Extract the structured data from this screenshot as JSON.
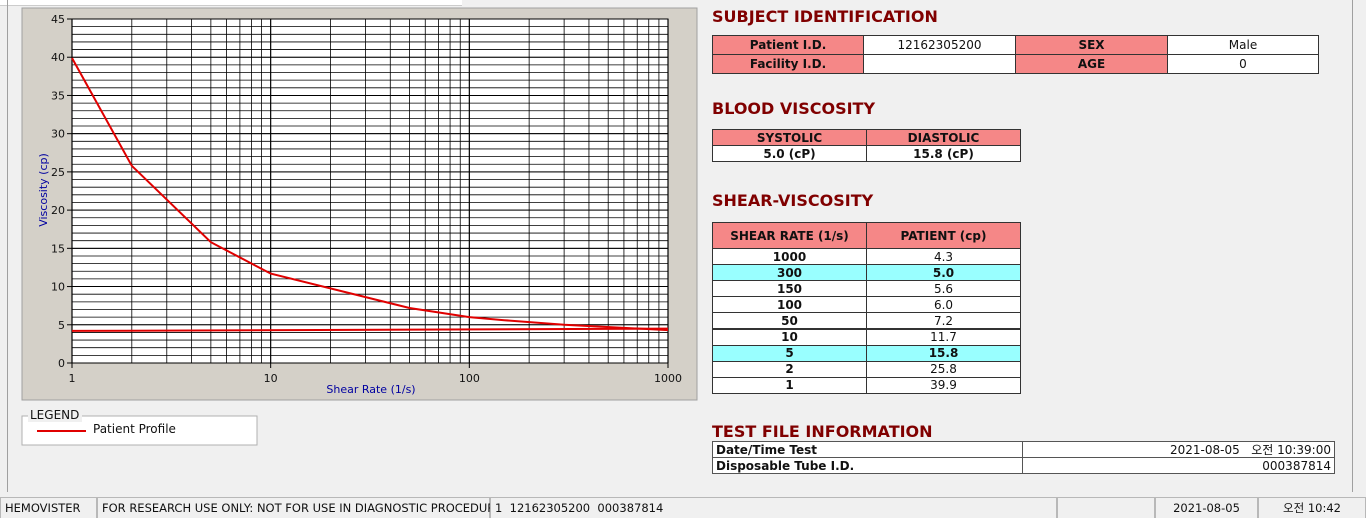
{
  "chart_data": {
    "type": "line",
    "xlabel": "Shear Rate (1/s)",
    "ylabel": "Viscosity (cp)",
    "x": [
      1,
      2,
      5,
      10,
      50,
      100,
      150,
      300,
      1000
    ],
    "series": [
      {
        "name": "Patient Profile",
        "color": "#e00000",
        "values": [
          39.9,
          25.8,
          15.8,
          11.7,
          7.2,
          6.0,
          5.6,
          5.0,
          4.3
        ]
      },
      {
        "color": "#e00000",
        "x": [
          1,
          12,
          1000
        ],
        "values": [
          4.2,
          4.3,
          4.5
        ]
      }
    ],
    "xscale": "log",
    "xlim": [
      1,
      1000
    ],
    "xticks": [
      1,
      10,
      100,
      1000
    ],
    "ylim": [
      0,
      45
    ],
    "yticks": [
      0,
      5,
      10,
      15,
      20,
      25,
      30,
      35,
      40,
      45
    ],
    "grid": true,
    "legend": {
      "title": "LEGEND"
    }
  },
  "subject": {
    "title": "SUBJECT IDENTIFICATION",
    "rows": [
      [
        "Patient I.D.",
        "12162305200",
        "SEX",
        "Male"
      ],
      [
        "Facility I.D.",
        null,
        "AGE",
        "0"
      ]
    ]
  },
  "blood": {
    "title": "BLOOD VISCOSITY",
    "headers": [
      "SYSTOLIC",
      "DIASTOLIC"
    ],
    "values": [
      "5.0 (cP)",
      "15.8 (cP)"
    ]
  },
  "shear": {
    "title": "SHEAR-VISCOSITY",
    "headers": [
      "SHEAR RATE (1/s)",
      "PATIENT (cp)"
    ],
    "rows": [
      [
        "1000",
        "4.3"
      ],
      [
        "300",
        "5.0"
      ],
      [
        "150",
        "5.6"
      ],
      [
        "100",
        "6.0"
      ],
      [
        "50",
        "7.2"
      ],
      [
        "10",
        "11.7"
      ],
      [
        "5",
        "15.8"
      ],
      [
        "2",
        "25.8"
      ],
      [
        "1",
        "39.9"
      ]
    ],
    "highlight_rows": [
      1,
      6
    ],
    "highlight_color": "#99ffff"
  },
  "test_file": {
    "title": "TEST FILE INFORMATION",
    "rows": [
      [
        "Date/Time Test",
        "2021-08-05   오전 10:39:00"
      ],
      [
        "Disposable Tube I.D.",
        "000387814"
      ]
    ]
  },
  "status_bar": [
    "HEMOVISTER",
    "FOR RESEARCH USE ONLY: NOT FOR USE IN DIAGNOSTIC PROCEDURES",
    "1  12162305200  000387814",
    "2021-08-05",
    "오전 10:42"
  ]
}
